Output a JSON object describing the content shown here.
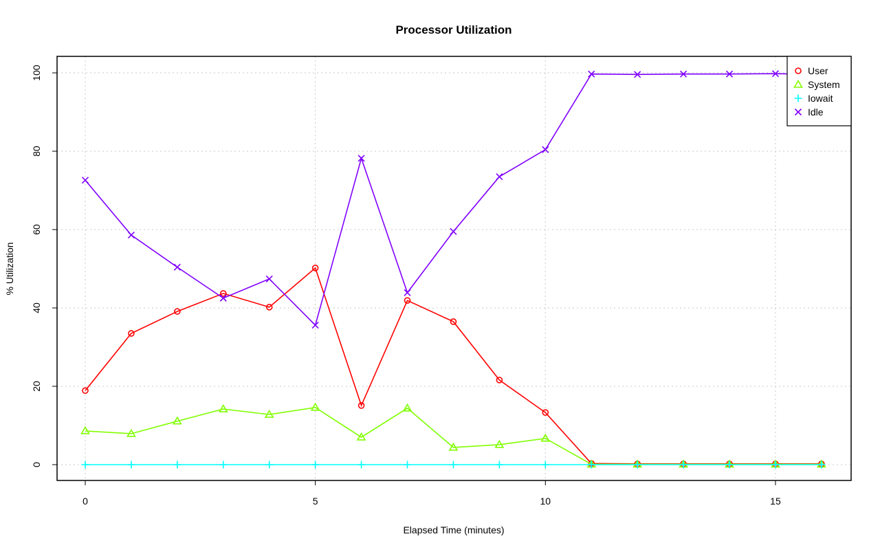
{
  "chart_data": {
    "type": "line",
    "title": "Processor Utilization",
    "xlabel": "Elapsed Time (minutes)",
    "ylabel": "% Utilization",
    "xlim": [
      -0.6,
      16.6
    ],
    "ylim": [
      -4,
      104
    ],
    "xticks": [
      0,
      5,
      10,
      15
    ],
    "yticks": [
      0,
      20,
      40,
      60,
      80,
      100
    ],
    "grid": true,
    "legend_position": "top-right",
    "x": [
      0,
      1,
      2,
      3,
      4,
      5,
      6,
      7,
      8,
      9,
      10,
      11,
      12,
      13,
      14,
      15,
      16
    ],
    "series": [
      {
        "name": "User",
        "color": "#ff0000",
        "marker": "circle",
        "values": [
          18.9,
          33.5,
          39.1,
          43.7,
          40.2,
          50.2,
          15.1,
          41.9,
          36.5,
          21.6,
          13.3,
          0.3,
          0.2,
          0.2,
          0.2,
          0.2,
          0.2
        ]
      },
      {
        "name": "System",
        "color": "#80ff00",
        "marker": "triangle",
        "values": [
          8.6,
          7.9,
          11.1,
          14.2,
          12.8,
          14.6,
          7.0,
          14.4,
          4.4,
          5.1,
          6.7,
          0.1,
          0.1,
          0.1,
          0.1,
          0.1,
          0.1
        ]
      },
      {
        "name": "Iowait",
        "color": "#00ffff",
        "marker": "plus",
        "values": [
          0,
          0,
          0,
          0,
          0,
          0,
          0,
          0,
          0,
          0,
          0,
          0,
          0,
          0,
          0,
          0,
          0
        ]
      },
      {
        "name": "Idle",
        "color": "#8000ff",
        "marker": "cross",
        "values": [
          72.6,
          58.6,
          50.4,
          42.5,
          47.4,
          35.6,
          78.2,
          43.9,
          59.5,
          73.5,
          80.4,
          99.7,
          99.6,
          99.7,
          99.7,
          99.8,
          99.6
        ]
      }
    ]
  }
}
